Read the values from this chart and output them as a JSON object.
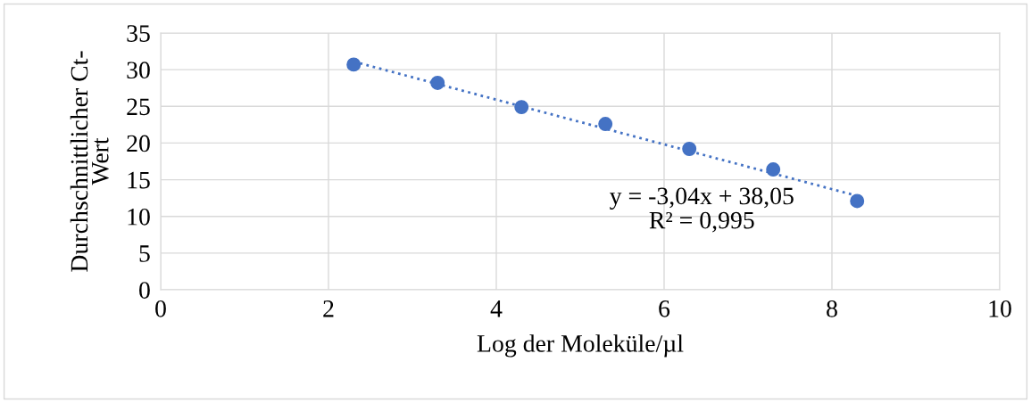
{
  "chart_data": {
    "type": "scatter",
    "xlabel": "Log der Moleküle/µl",
    "ylabel": "Durchschnittlicher Ct-\nWert",
    "x": [
      2.3,
      3.3,
      4.3,
      5.3,
      6.3,
      7.3,
      8.3
    ],
    "series": [
      {
        "color": "#4472c4",
        "values": [
          30.7,
          28.2,
          24.9,
          22.6,
          19.2,
          16.4,
          12.1
        ],
        "marker": "circle"
      },
      {
        "type": "line",
        "color": "#4472c4",
        "x": [
          2.3,
          8.3
        ],
        "values": [
          31.1,
          12.8
        ],
        "line_style": "dotted",
        "marker": "none"
      }
    ],
    "annotations": [
      "y = -3,04x + 38,05\nR² = 0,995"
    ],
    "xlim": [
      0,
      10
    ],
    "xticks": [
      0,
      2,
      4,
      6,
      8,
      10
    ],
    "ylim": [
      0,
      35
    ],
    "yticks": [
      0,
      5,
      10,
      15,
      20,
      25,
      30,
      35
    ],
    "grid": true,
    "legend": false
  }
}
